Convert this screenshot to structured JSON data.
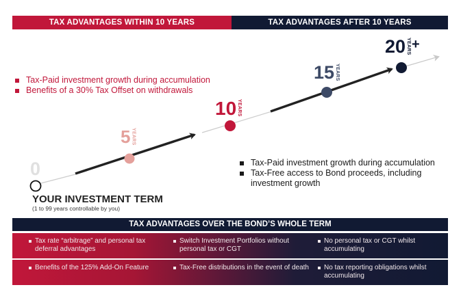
{
  "headers": {
    "within": "TAX ADVANTAGES WITHIN 10 YEARS",
    "after": "TAX ADVANTAGES AFTER 10 YEARS"
  },
  "milestones": [
    {
      "number": "0",
      "suffix": "",
      "color": "#e0e0e0"
    },
    {
      "number": "5",
      "suffix": "YEARS",
      "color": "#e4a09b"
    },
    {
      "number": "10",
      "suffix": "YEARS",
      "color": "#c1173a"
    },
    {
      "number": "15",
      "suffix": "YEARS",
      "color": "#3d4a66"
    },
    {
      "number": "20",
      "suffix": "YEARS",
      "plus": "+",
      "color": "#111a33"
    }
  ],
  "within_bullets": [
    "Tax-Paid investment growth during accumulation",
    "Benefits of a 30% Tax Offset on withdrawals"
  ],
  "after_bullets": [
    "Tax-Paid investment growth during accumulation",
    "Tax-Free access to Bond proceeds, including investment growth"
  ],
  "term": {
    "title": "YOUR INVESTMENT TERM",
    "subtitle": "(1 to 99 years controllable by you)"
  },
  "bond": {
    "header": "TAX ADVANTAGES OVER THE BOND’S WHOLE TERM",
    "rows": [
      [
        "Tax rate “arbitrage” and personal tax deferral advantages",
        "Switch Investment Portfolios without personal tax or CGT",
        "No personal tax or CGT whilst accumulating"
      ],
      [
        "Benefits of the 125% Add-On Feature",
        "Tax-Free distributions in the event of death",
        "No tax reporting obligations whilst accumulating"
      ]
    ]
  },
  "colors": {
    "red": "#c1173a",
    "navy": "#111a33"
  }
}
